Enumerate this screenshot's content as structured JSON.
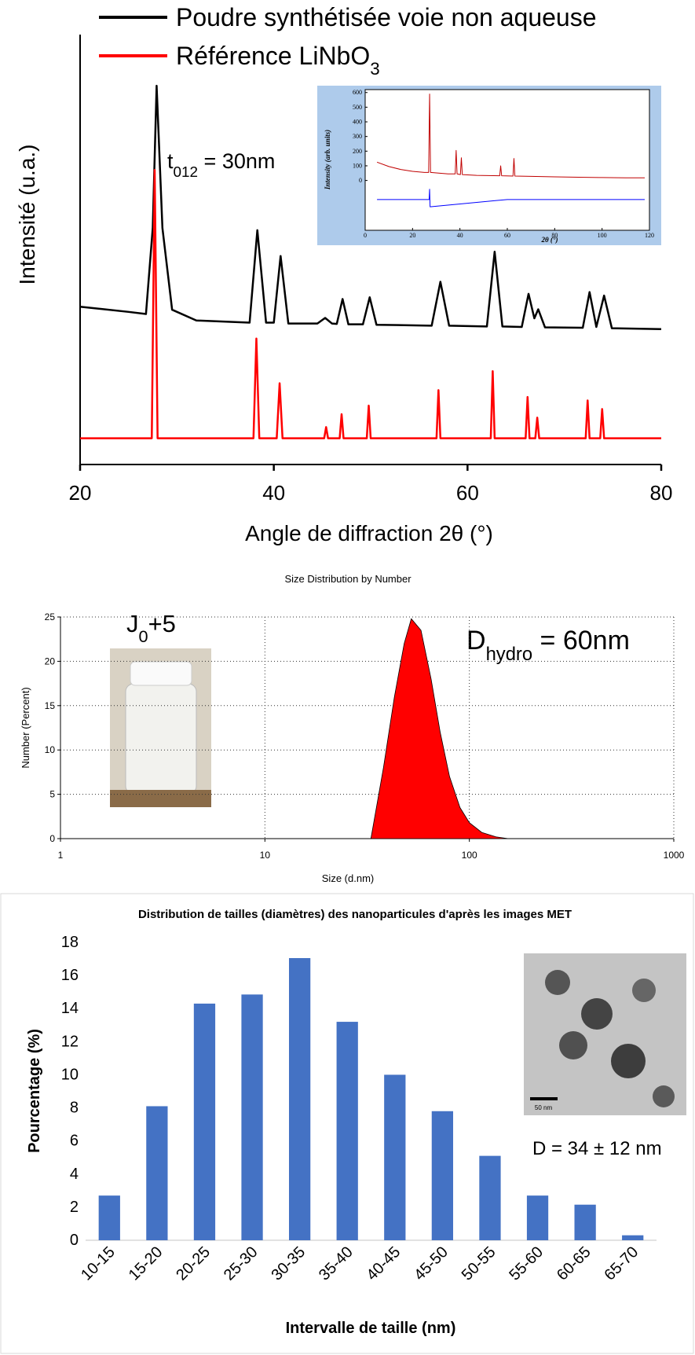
{
  "chart_data": [
    {
      "type": "line",
      "x_label": "Angle de diffraction 2θ (°)",
      "y_label": "Intensité (u.a.)",
      "annotation": "t012 = 30nm",
      "xlim": [
        20,
        80
      ],
      "xticks": [
        20,
        40,
        60,
        80
      ],
      "ylim": [
        0,
        100
      ],
      "series": [
        {
          "name": "Poudre synthétisée voie non aqueuse",
          "color": "#000000",
          "x": [
            20,
            25,
            26.8,
            27.5,
            27.9,
            28.5,
            29.5,
            32,
            37.5,
            38.3,
            39.2,
            40,
            40.7,
            41.5,
            44.5,
            45.3,
            46,
            46.5,
            47.1,
            47.7,
            49.2,
            49.9,
            50.6,
            56.3,
            57.2,
            58.1,
            62,
            62.8,
            63.6,
            65.6,
            66.3,
            66.9,
            67.3,
            68,
            71.9,
            72.6,
            73.3,
            74.1,
            74.9,
            80
          ],
          "values": [
            36.7,
            35.5,
            35.0,
            55,
            88.1,
            55,
            36,
            33.5,
            33,
            54.5,
            33,
            33,
            48.5,
            32.8,
            32.8,
            34.1,
            32.8,
            32.7,
            38.5,
            32.6,
            32.6,
            38.9,
            32.5,
            32.3,
            42.5,
            32.3,
            32.1,
            49.5,
            32.1,
            32,
            39.7,
            34,
            36.1,
            31.9,
            31.8,
            40.1,
            32,
            39.3,
            31.7,
            31.5
          ]
        },
        {
          "name": "Référence LiNbO3",
          "color": "#ff0000",
          "x": [
            20,
            27.4,
            27.7,
            28.0,
            37.9,
            38.2,
            38.5,
            40.3,
            40.6,
            40.9,
            45.2,
            45.4,
            45.6,
            46.8,
            47.0,
            47.2,
            49.6,
            49.8,
            50.0,
            56.8,
            57.0,
            57.2,
            62.4,
            62.6,
            62.8,
            66.0,
            66.2,
            66.4,
            67.0,
            67.2,
            67.4,
            72.2,
            72.4,
            72.6,
            73.7,
            73.9,
            74.1,
            80
          ],
          "values": [
            6.1,
            6.1,
            68.5,
            6.1,
            6.1,
            29.3,
            6.1,
            6.1,
            18.9,
            6.1,
            6.1,
            8.7,
            6.1,
            6.1,
            11.7,
            6.1,
            6.1,
            13.7,
            6.1,
            6.1,
            17.3,
            6.1,
            6.1,
            21.7,
            6.1,
            6.1,
            15.7,
            6.1,
            6.1,
            10.9,
            6.1,
            6.1,
            14.9,
            6.1,
            6.1,
            12.9,
            6.1,
            6.1
          ]
        }
      ]
    },
    {
      "type": "line",
      "x_label": "2θ (°)",
      "y_label": "Intensity (arb. units)",
      "xlim": [
        0,
        120
      ],
      "xticks": [
        0,
        20,
        40,
        60,
        80,
        100,
        120
      ],
      "ylim": [
        -340,
        620
      ],
      "yticks": [
        0,
        100,
        200,
        300,
        400,
        500,
        600
      ],
      "series": [
        {
          "color": "#c00000",
          "x": [
            5,
            10,
            15,
            20,
            25,
            26.8,
            27.2,
            27.6,
            35,
            38.0,
            38.4,
            38.8,
            40.2,
            40.6,
            41,
            47,
            56.8,
            57.2,
            57.6,
            62.4,
            62.8,
            63.2,
            70,
            80,
            90,
            100,
            110,
            118
          ],
          "values": [
            125,
            95,
            75,
            62,
            55,
            55,
            590,
            55,
            45,
            45,
            205,
            45,
            40,
            155,
            40,
            35,
            32,
            100,
            32,
            30,
            150,
            30,
            28,
            25,
            22,
            20,
            18,
            18
          ]
        },
        {
          "color": "#0000ff",
          "x": [
            5,
            27,
            27.2,
            27.4,
            60,
            118
          ],
          "values": [
            -130,
            -130,
            -60,
            -180,
            -130,
            -130
          ]
        }
      ]
    },
    {
      "type": "area",
      "title": "Size Distribution by Number",
      "x_label": "Size (d.nm)",
      "y_label": "Number (Percent)",
      "x_scale": "log",
      "xlim": [
        1,
        1000
      ],
      "xticks": [
        1,
        10,
        100,
        1000
      ],
      "ylim": [
        0,
        25
      ],
      "yticks": [
        0,
        5,
        10,
        15,
        20,
        25
      ],
      "grid": true,
      "annotations": [
        "J0+5",
        "Dhydro = 60nm"
      ],
      "series": [
        {
          "color": "#ff0000",
          "x": [
            33,
            38,
            43,
            48,
            52,
            58,
            65,
            72,
            80,
            90,
            100,
            115,
            135,
            155
          ],
          "values": [
            0,
            8,
            16,
            22,
            24.8,
            23.5,
            18,
            12,
            7,
            3.5,
            1.8,
            0.7,
            0.2,
            0
          ]
        }
      ]
    },
    {
      "type": "bar",
      "title": "Distribution de tailles (diamètres) des nanoparticules d'après les images MET",
      "x_label": "Intervalle de taille (nm)",
      "y_label": "Pourcentage (%)",
      "categories": [
        "10-15",
        "15-20",
        "20-25",
        "25-30",
        "30-35",
        "35-40",
        "40-45",
        "45-50",
        "50-55",
        "55-60",
        "60-65",
        "65-70"
      ],
      "values": [
        2.7,
        8.1,
        14.3,
        14.85,
        17.05,
        13.2,
        10.0,
        7.8,
        5.1,
        2.7,
        2.15,
        0.3
      ],
      "color": "#4472c4",
      "ylim": [
        0,
        18
      ],
      "yticks": [
        0,
        2,
        4,
        6,
        8,
        10,
        12,
        14,
        16,
        18
      ],
      "annotations": [
        "D = 34 ± 12 nm",
        "50 nm"
      ]
    }
  ]
}
